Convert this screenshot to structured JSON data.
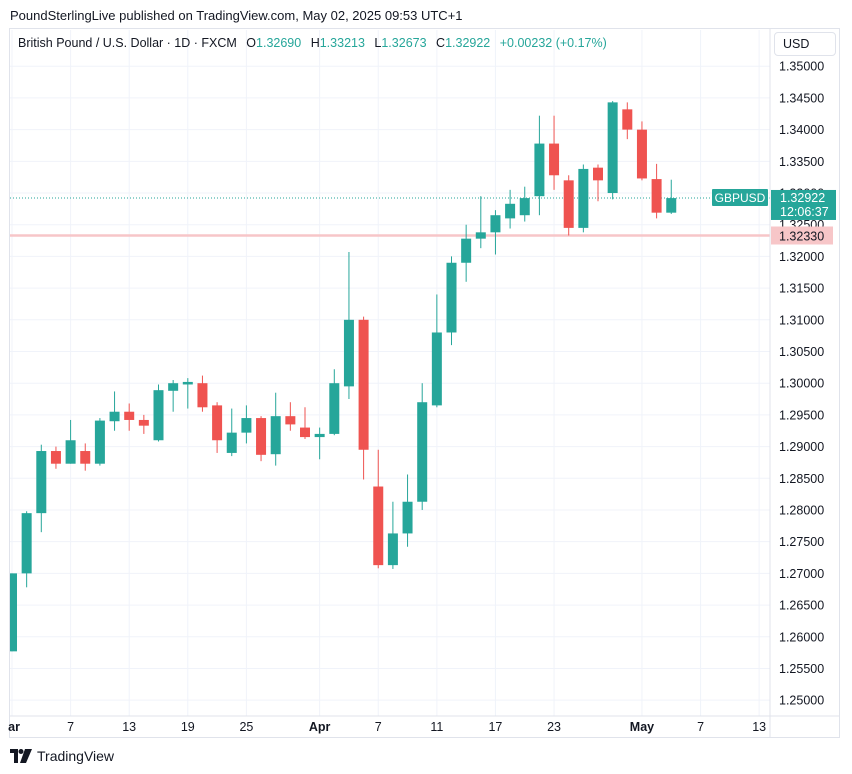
{
  "header": {
    "publisher_line": "PoundSterlingLive published on TradingView.com, May 02, 2025 09:53 UTC+1"
  },
  "legend": {
    "symbol_desc": "British Pound / U.S. Dollar · 1D · FXCM",
    "open_label": "O",
    "open": "1.32690",
    "high_label": "H",
    "high": "1.33213",
    "low_label": "L",
    "low": "1.32673",
    "close_label": "C",
    "close": "1.32922",
    "change": "+0.00232 (+0.17%)"
  },
  "currency_button": "USD",
  "price_tag": {
    "symbol": "GBPUSD",
    "price": "1.32922",
    "countdown": "12:06:37"
  },
  "level_tag": {
    "price": "1.32330"
  },
  "footer": {
    "brand": "TradingView"
  },
  "colors": {
    "up": "#26a69a",
    "down": "#ef5350",
    "level": "#f7c6c8",
    "grid": "#f0f3fa"
  },
  "chart_data": {
    "type": "candlestick",
    "symbol": "GBPUSD",
    "timeframe": "1D",
    "ylim": [
      1.2475,
      1.3513
    ],
    "y_ticks": [
      "1.25000",
      "1.25500",
      "1.26000",
      "1.26500",
      "1.27000",
      "1.27500",
      "1.28000",
      "1.28500",
      "1.29000",
      "1.29500",
      "1.30000",
      "1.30500",
      "1.31000",
      "1.31500",
      "1.32000",
      "1.32500",
      "1.33000",
      "1.33500",
      "1.34000",
      "1.34500",
      "1.35000"
    ],
    "x_ticks": [
      {
        "label": "ar",
        "bold": true,
        "index": 0
      },
      {
        "label": "7",
        "bold": false,
        "index": 4
      },
      {
        "label": "13",
        "bold": false,
        "index": 8
      },
      {
        "label": "19",
        "bold": false,
        "index": 12
      },
      {
        "label": "25",
        "bold": false,
        "index": 16
      },
      {
        "label": "Apr",
        "bold": true,
        "index": 21
      },
      {
        "label": "7",
        "bold": false,
        "index": 25
      },
      {
        "label": "11",
        "bold": false,
        "index": 29
      },
      {
        "label": "17",
        "bold": false,
        "index": 33
      },
      {
        "label": "23",
        "bold": false,
        "index": 37
      },
      {
        "label": "May",
        "bold": true,
        "index": 43
      },
      {
        "label": "7",
        "bold": false,
        "index": 47
      },
      {
        "label": "13",
        "bold": false,
        "index": 51
      }
    ],
    "horizontal_level": 1.3233,
    "last_price": 1.32922,
    "candles": [
      {
        "o": 1.2577,
        "h": 1.27,
        "l": 1.2577,
        "c": 1.27
      },
      {
        "o": 1.27,
        "h": 1.2798,
        "l": 1.2678,
        "c": 1.2795
      },
      {
        "o": 1.2795,
        "h": 1.2903,
        "l": 1.2765,
        "c": 1.2893
      },
      {
        "o": 1.2893,
        "h": 1.29,
        "l": 1.2865,
        "c": 1.2873
      },
      {
        "o": 1.2873,
        "h": 1.2942,
        "l": 1.2873,
        "c": 1.291
      },
      {
        "o": 1.2893,
        "h": 1.2905,
        "l": 1.2862,
        "c": 1.2873
      },
      {
        "o": 1.2873,
        "h": 1.2945,
        "l": 1.287,
        "c": 1.2941
      },
      {
        "o": 1.294,
        "h": 1.2987,
        "l": 1.2925,
        "c": 1.2955
      },
      {
        "o": 1.2955,
        "h": 1.2968,
        "l": 1.2925,
        "c": 1.2942
      },
      {
        "o": 1.2942,
        "h": 1.295,
        "l": 1.292,
        "c": 1.2933
      },
      {
        "o": 1.291,
        "h": 1.2998,
        "l": 1.2908,
        "c": 1.2989
      },
      {
        "o": 1.2988,
        "h": 1.3005,
        "l": 1.2955,
        "c": 1.3
      },
      {
        "o": 1.2998,
        "h": 1.3008,
        "l": 1.296,
        "c": 1.3002
      },
      {
        "o": 1.3,
        "h": 1.3012,
        "l": 1.2955,
        "c": 1.2962
      },
      {
        "o": 1.2965,
        "h": 1.297,
        "l": 1.289,
        "c": 1.291
      },
      {
        "o": 1.289,
        "h": 1.296,
        "l": 1.2885,
        "c": 1.2922
      },
      {
        "o": 1.2922,
        "h": 1.2965,
        "l": 1.2905,
        "c": 1.2945
      },
      {
        "o": 1.2945,
        "h": 1.2948,
        "l": 1.2877,
        "c": 1.2887
      },
      {
        "o": 1.2888,
        "h": 1.2985,
        "l": 1.287,
        "c": 1.2948
      },
      {
        "o": 1.2948,
        "h": 1.297,
        "l": 1.2925,
        "c": 1.2935
      },
      {
        "o": 1.293,
        "h": 1.2962,
        "l": 1.2912,
        "c": 1.2915
      },
      {
        "o": 1.2915,
        "h": 1.293,
        "l": 1.288,
        "c": 1.292
      },
      {
        "o": 1.292,
        "h": 1.3022,
        "l": 1.2918,
        "c": 1.3
      },
      {
        "o": 1.2995,
        "h": 1.3207,
        "l": 1.2975,
        "c": 1.31
      },
      {
        "o": 1.31,
        "h": 1.3105,
        "l": 1.2848,
        "c": 1.2895
      },
      {
        "o": 1.2837,
        "h": 1.2895,
        "l": 1.2708,
        "c": 1.2713
      },
      {
        "o": 1.2713,
        "h": 1.2813,
        "l": 1.2707,
        "c": 1.2763
      },
      {
        "o": 1.2763,
        "h": 1.2856,
        "l": 1.2742,
        "c": 1.2813
      },
      {
        "o": 1.2813,
        "h": 1.3,
        "l": 1.28,
        "c": 1.297
      },
      {
        "o": 1.2965,
        "h": 1.314,
        "l": 1.2962,
        "c": 1.308
      },
      {
        "o": 1.308,
        "h": 1.32,
        "l": 1.306,
        "c": 1.319
      },
      {
        "o": 1.319,
        "h": 1.325,
        "l": 1.316,
        "c": 1.3228
      },
      {
        "o": 1.3228,
        "h": 1.3295,
        "l": 1.3213,
        "c": 1.3238
      },
      {
        "o": 1.3238,
        "h": 1.3273,
        "l": 1.3203,
        "c": 1.3265
      },
      {
        "o": 1.326,
        "h": 1.3305,
        "l": 1.3244,
        "c": 1.3283
      },
      {
        "o": 1.3265,
        "h": 1.331,
        "l": 1.3255,
        "c": 1.3292
      },
      {
        "o": 1.3295,
        "h": 1.3422,
        "l": 1.3265,
        "c": 1.3378
      },
      {
        "o": 1.3378,
        "h": 1.3422,
        "l": 1.3305,
        "c": 1.3328
      },
      {
        "o": 1.332,
        "h": 1.3328,
        "l": 1.3233,
        "c": 1.3245
      },
      {
        "o": 1.3245,
        "h": 1.3345,
        "l": 1.3238,
        "c": 1.3338
      },
      {
        "o": 1.334,
        "h": 1.3345,
        "l": 1.3287,
        "c": 1.332
      },
      {
        "o": 1.33,
        "h": 1.3445,
        "l": 1.329,
        "c": 1.3443
      },
      {
        "o": 1.3432,
        "h": 1.3443,
        "l": 1.3385,
        "c": 1.34
      },
      {
        "o": 1.34,
        "h": 1.3413,
        "l": 1.332,
        "c": 1.3323
      },
      {
        "o": 1.3322,
        "h": 1.3346,
        "l": 1.326,
        "c": 1.3269
      },
      {
        "o": 1.3269,
        "h": 1.3321,
        "l": 1.3267,
        "c": 1.3292
      }
    ]
  }
}
